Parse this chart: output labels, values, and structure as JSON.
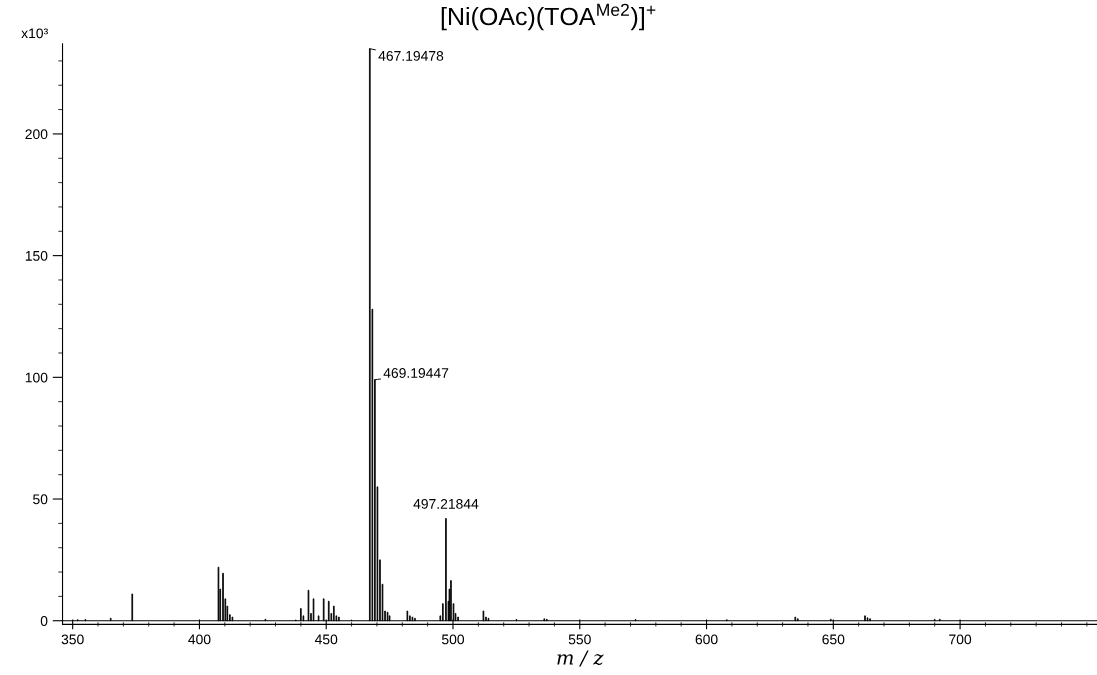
{
  "chart_data": {
    "type": "bar",
    "title": "[Ni(OAc)(TOA$^{Me2}$)]$^{+}$",
    "ylabel": "x10³",
    "xlabel": "m / z",
    "color": "#000000",
    "x": [
      352,
      355,
      365,
      373.5,
      407.5,
      408.2,
      409.3,
      410.2,
      411,
      412,
      413,
      426,
      438,
      440,
      441,
      443,
      444,
      445,
      447,
      449,
      451,
      452,
      453,
      454,
      455,
      460,
      467.19478,
      468.2,
      469.19447,
      470.2,
      471.2,
      472.2,
      473.2,
      474.2,
      475,
      482,
      483,
      484,
      485,
      495,
      496,
      497.21844,
      498.2,
      498.6,
      499.2,
      500.2,
      501,
      502,
      512,
      513,
      514,
      525,
      536,
      537,
      572,
      608,
      635,
      636,
      649,
      662.5,
      663.5,
      664.5,
      690,
      692
    ],
    "values": [
      0.4,
      0.5,
      1,
      11,
      22,
      13,
      19.5,
      9,
      6,
      2.5,
      1.5,
      0.6,
      0.3,
      5,
      2,
      12.5,
      3,
      9,
      2,
      9,
      8,
      3,
      6,
      2,
      1.5,
      0.3,
      235,
      128,
      99,
      55,
      25,
      15,
      4,
      3.5,
      2,
      4,
      2,
      1.5,
      1,
      2,
      7,
      42,
      8,
      13,
      16.5,
      7,
      3,
      1.5,
      4,
      1.5,
      1,
      0.5,
      0.8,
      0.6,
      0.5,
      0.4,
      1.5,
      0.8,
      0.6,
      2,
      1.2,
      0.8,
      0.5,
      0.6
    ],
    "xlim": [
      346,
      754
    ],
    "xticks": [
      350,
      {
        "value": 360,
        "label": null
      },
      {
        "value": 370,
        "label": null
      },
      {
        "value": 380,
        "label": null
      },
      {
        "value": 390,
        "label": null
      },
      400,
      {
        "value": 410,
        "label": null
      },
      {
        "value": 420,
        "label": null
      },
      {
        "value": 430,
        "label": null
      },
      {
        "value": 440,
        "label": null
      },
      450,
      {
        "value": 460,
        "label": null
      },
      {
        "value": 470,
        "label": null
      },
      {
        "value": 480,
        "label": null
      },
      {
        "value": 490,
        "label": null
      },
      500,
      {
        "value": 510,
        "label": null
      },
      {
        "value": 520,
        "label": null
      },
      {
        "value": 530,
        "label": null
      },
      {
        "value": 540,
        "label": null
      },
      550,
      {
        "value": 560,
        "label": null
      },
      {
        "value": 570,
        "label": null
      },
      {
        "value": 580,
        "label": null
      },
      {
        "value": 590,
        "label": null
      },
      600,
      {
        "value": 610,
        "label": null
      },
      {
        "value": 620,
        "label": null
      },
      {
        "value": 630,
        "label": null
      },
      {
        "value": 640,
        "label": null
      },
      650,
      {
        "value": 660,
        "label": null
      },
      {
        "value": 670,
        "label": null
      },
      {
        "value": 680,
        "label": null
      },
      {
        "value": 690,
        "label": null
      },
      700,
      {
        "value": 710,
        "label": null
      },
      {
        "value": 720,
        "label": null
      },
      {
        "value": 730,
        "label": null
      },
      {
        "value": 740,
        "label": null
      },
      {
        "value": 750,
        "label": null
      }
    ],
    "ylim": [
      -1.5,
      237
    ],
    "yticks": [
      0,
      {
        "value": 10,
        "label": null
      },
      {
        "value": 20,
        "label": null
      },
      {
        "value": 30,
        "label": null
      },
      {
        "value": 40,
        "label": null
      },
      50,
      {
        "value": 60,
        "label": null
      },
      {
        "value": 70,
        "label": null
      },
      {
        "value": 80,
        "label": null
      },
      {
        "value": 90,
        "label": null
      },
      100,
      {
        "value": 110,
        "label": null
      },
      {
        "value": 120,
        "label": null
      },
      {
        "value": 130,
        "label": null
      },
      {
        "value": 140,
        "label": null
      },
      150,
      {
        "value": 160,
        "label": null
      },
      {
        "value": 170,
        "label": null
      },
      {
        "value": 180,
        "label": null
      },
      {
        "value": 190,
        "label": null
      },
      200,
      {
        "value": 210,
        "label": null
      },
      {
        "value": 220,
        "label": null
      },
      {
        "value": 230,
        "label": null
      }
    ],
    "ref_lines": [
      {
        "axis": "y",
        "value": 0,
        "color": "#000000"
      }
    ],
    "annotations": [
      {
        "text": "467.19478",
        "x": 467.19478,
        "y": 235
      },
      {
        "text": "469.19447",
        "x": 469.19447,
        "y": 99
      },
      {
        "text": "497.21844",
        "x": 497.21844,
        "y": 42
      }
    ],
    "grid": false
  }
}
